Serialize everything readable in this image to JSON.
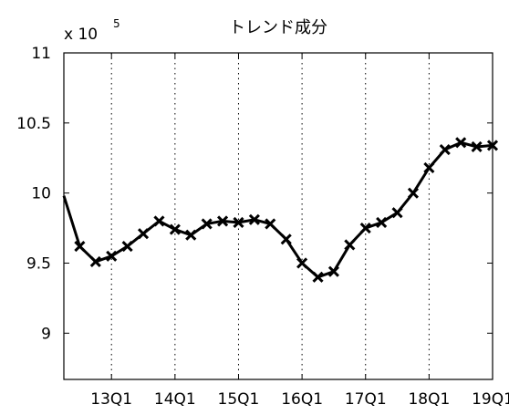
{
  "chart_data": {
    "type": "line",
    "title": "トレンド成分",
    "multiplier": {
      "prefix": "x 10",
      "exponent": "5"
    },
    "xlabel": "",
    "ylabel": "",
    "x_tick_labels": [
      "13Q1",
      "14Q1",
      "15Q1",
      "16Q1",
      "17Q1",
      "18Q1",
      "19Q1"
    ],
    "x_ticks_index": [
      3,
      7,
      11,
      15,
      19,
      23,
      27
    ],
    "xlim_index": [
      0,
      27
    ],
    "y_tick_labels": [
      "9",
      "9.5",
      "10",
      "10.5",
      "11"
    ],
    "y_ticks": [
      9,
      9.5,
      10,
      10.5,
      11
    ],
    "ylim": [
      8.67,
      11
    ],
    "grid": {
      "x": true,
      "y": false
    },
    "marker": "x",
    "series": [
      {
        "values": [
          9.98,
          9.62,
          9.51,
          9.55,
          9.62,
          9.71,
          9.8,
          9.74,
          9.7,
          9.78,
          9.8,
          9.79,
          9.81,
          9.78,
          9.67,
          9.5,
          9.4,
          9.44,
          9.63,
          9.75,
          9.79,
          9.86,
          10.0,
          10.18,
          10.31,
          10.36,
          10.33,
          10.34
        ],
        "markers_from_index": 1
      }
    ]
  }
}
